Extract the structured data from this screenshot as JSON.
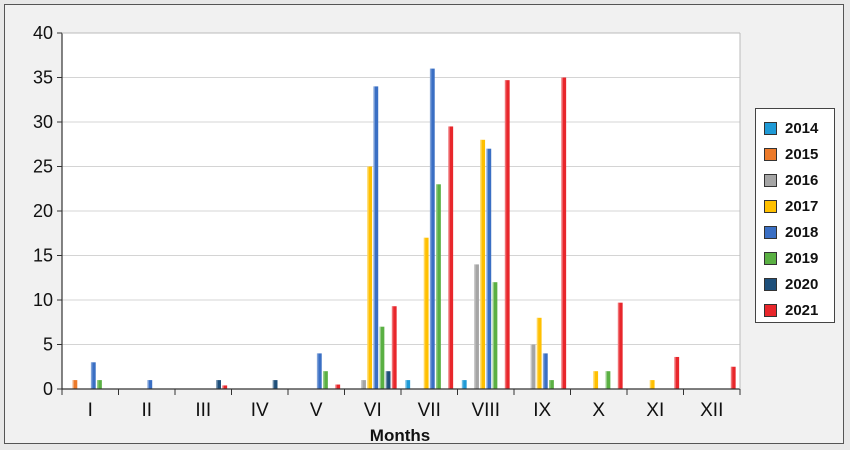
{
  "chart_data": {
    "type": "bar",
    "xlabel": "Months",
    "ylabel": "",
    "ylim": [
      0,
      40
    ],
    "yticks": [
      "0",
      "5",
      "10",
      "15",
      "20",
      "25",
      "30",
      "35",
      "40"
    ],
    "grid": true,
    "legend_position": "right",
    "categories": [
      "I",
      "II",
      "III",
      "IV",
      "V",
      "VI",
      "VII",
      "VIII",
      "IX",
      "X",
      "XI",
      "XII"
    ],
    "series": [
      {
        "name": "2014",
        "color": "#1f9ad6",
        "values": [
          0,
          0,
          0,
          0,
          0,
          0,
          1,
          1,
          0,
          0,
          0,
          0
        ]
      },
      {
        "name": "2015",
        "color": "#ec7a2a",
        "values": [
          1,
          0,
          0,
          0,
          0,
          0,
          0,
          0,
          0,
          0,
          0,
          0
        ]
      },
      {
        "name": "2016",
        "color": "#a5a5a5",
        "values": [
          0,
          0,
          0,
          0,
          0,
          1,
          0,
          14,
          5,
          0,
          0,
          0
        ]
      },
      {
        "name": "2017",
        "color": "#ffc000",
        "values": [
          0,
          0,
          0,
          0,
          0,
          25,
          17,
          28,
          8,
          2,
          1,
          0
        ]
      },
      {
        "name": "2018",
        "color": "#3a6fc4",
        "values": [
          3,
          1,
          0,
          0,
          4,
          34,
          36,
          27,
          4,
          0,
          0,
          0
        ]
      },
      {
        "name": "2019",
        "color": "#5ab043",
        "values": [
          1,
          0,
          0,
          0,
          2,
          7,
          23,
          12,
          1,
          2,
          0,
          0
        ]
      },
      {
        "name": "2020",
        "color": "#1e4f7a",
        "values": [
          0,
          0,
          1,
          1,
          0,
          2,
          0,
          0,
          0,
          0,
          0,
          0
        ]
      },
      {
        "name": "2021",
        "color": "#e8262b",
        "values": [
          0,
          0,
          0.4,
          0,
          0.5,
          9.3,
          29.5,
          34.7,
          35,
          9.7,
          3.6,
          2.5
        ]
      }
    ]
  }
}
